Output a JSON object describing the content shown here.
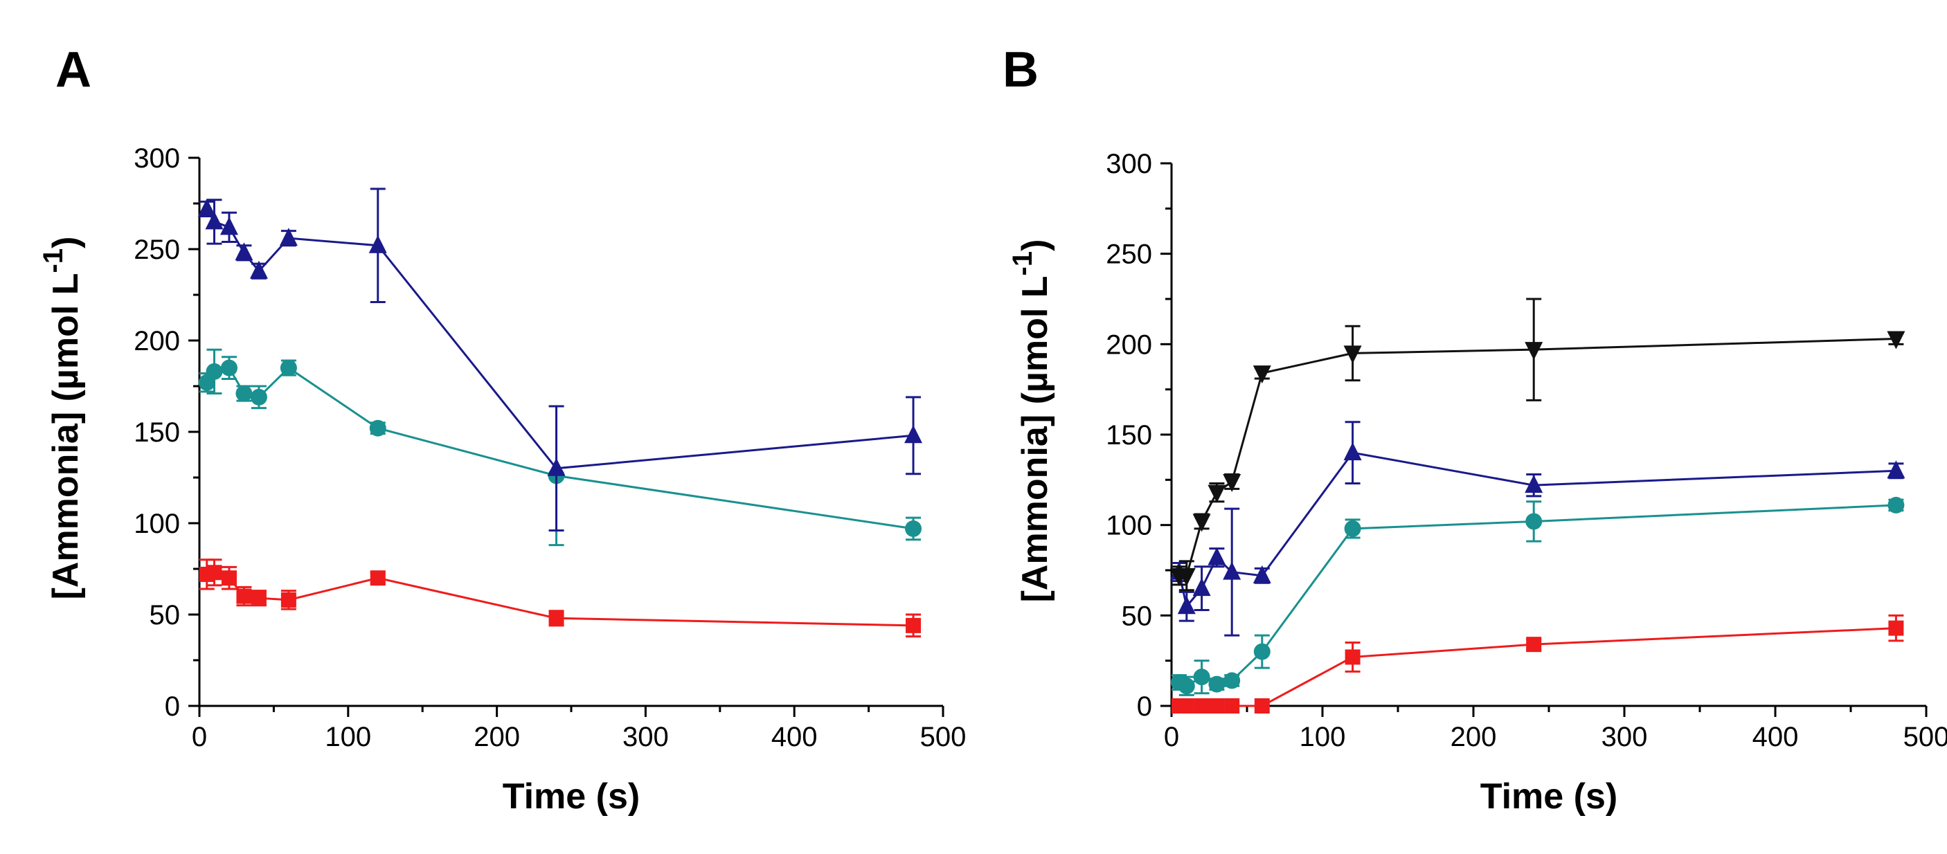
{
  "chart_data": [
    {
      "panel": "A",
      "type": "line",
      "xlabel": "Time (s)",
      "ylabel": "[Ammonia] (µmol L",
      "ylabel_sup": "-1",
      "ylabel_close": ")",
      "xlim": [
        0,
        500
      ],
      "ylim": [
        0,
        300
      ],
      "xticks": [
        0,
        100,
        200,
        300,
        400,
        500
      ],
      "yticks": [
        0,
        50,
        100,
        150,
        200,
        250,
        300
      ],
      "xtick_labels": [
        "0",
        "100",
        "200",
        "300",
        "400",
        "500"
      ],
      "ytick_labels": [
        "0",
        "50",
        "100",
        "150",
        "200",
        "250",
        "300"
      ],
      "series": [
        {
          "name": "series-red",
          "color": "#ee1c1c",
          "marker": "square",
          "x": [
            5,
            10,
            20,
            30,
            40,
            60,
            120,
            240,
            480
          ],
          "y": [
            72,
            73,
            70,
            60,
            59,
            58,
            70,
            48,
            44
          ],
          "err": [
            8,
            7,
            6,
            5,
            4,
            5,
            3,
            4,
            6
          ]
        },
        {
          "name": "series-teal",
          "color": "#1a9090",
          "marker": "circle",
          "x": [
            5,
            10,
            20,
            30,
            40,
            60,
            120,
            240,
            480
          ],
          "y": [
            177,
            183,
            185,
            171,
            169,
            185,
            152,
            126,
            97
          ],
          "err": [
            5,
            12,
            6,
            4,
            6,
            4,
            3,
            38,
            6
          ]
        },
        {
          "name": "series-navy",
          "color": "#1a1a8a",
          "marker": "triangle-up",
          "x": [
            5,
            10,
            20,
            30,
            40,
            60,
            120,
            240,
            480
          ],
          "y": [
            272,
            265,
            262,
            248,
            238,
            256,
            252,
            130,
            148
          ],
          "err": [
            4,
            12,
            8,
            4,
            4,
            4,
            31,
            34,
            21
          ]
        }
      ]
    },
    {
      "panel": "B",
      "type": "line",
      "xlabel": "Time (s)",
      "ylabel": "[Ammonia] (µmol L",
      "ylabel_sup": "-1",
      "ylabel_close": ")",
      "xlim": [
        0,
        500
      ],
      "ylim": [
        0,
        300
      ],
      "xticks": [
        0,
        100,
        200,
        300,
        400,
        500
      ],
      "yticks": [
        0,
        50,
        100,
        150,
        200,
        250,
        300
      ],
      "xtick_labels": [
        "0",
        "100",
        "200",
        "300",
        "400",
        "500"
      ],
      "ytick_labels": [
        "0",
        "50",
        "100",
        "150",
        "200",
        "250",
        "300"
      ],
      "series": [
        {
          "name": "series-red",
          "color": "#ee1c1c",
          "marker": "square",
          "x": [
            5,
            10,
            20,
            30,
            40,
            60,
            120,
            240,
            480
          ],
          "y": [
            0,
            0,
            0,
            0,
            0,
            0,
            27,
            34,
            43
          ],
          "err": [
            0,
            0,
            0,
            0,
            0,
            0,
            8,
            3,
            7
          ]
        },
        {
          "name": "series-teal",
          "color": "#1a9090",
          "marker": "circle",
          "x": [
            5,
            10,
            20,
            30,
            40,
            60,
            120,
            240,
            480
          ],
          "y": [
            13,
            11,
            16,
            12,
            14,
            30,
            98,
            102,
            111
          ],
          "err": [
            4,
            5,
            9,
            3,
            3,
            9,
            5,
            11,
            3
          ]
        },
        {
          "name": "series-navy",
          "color": "#1a1a8a",
          "marker": "triangle-up",
          "x": [
            5,
            10,
            20,
            30,
            40,
            60,
            120,
            240,
            480
          ],
          "y": [
            74,
            55,
            65,
            82,
            74,
            72,
            140,
            122,
            130
          ],
          "err": [
            5,
            8,
            12,
            5,
            35,
            4,
            17,
            6,
            4
          ]
        },
        {
          "name": "series-black",
          "color": "#111111",
          "marker": "triangle-down",
          "x": [
            5,
            10,
            20,
            30,
            40,
            60,
            120,
            240,
            480
          ],
          "y": [
            72,
            72,
            102,
            118,
            124,
            184,
            195,
            197,
            203
          ],
          "err": [
            5,
            8,
            4,
            5,
            4,
            3,
            15,
            28,
            3
          ]
        }
      ]
    }
  ]
}
